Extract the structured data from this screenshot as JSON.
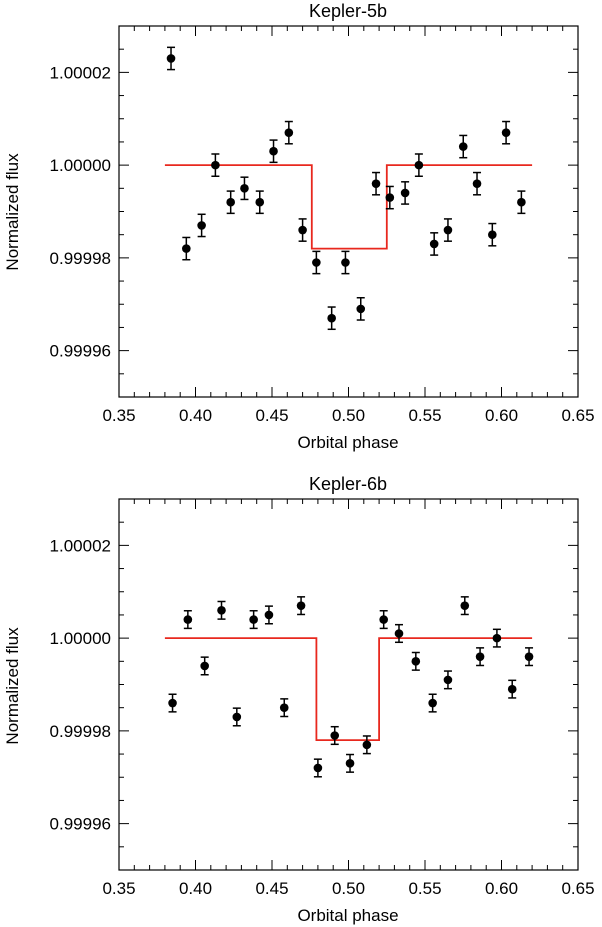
{
  "chart_data": [
    {
      "type": "scatter",
      "title": "Kepler-5b",
      "xlabel": "Orbital phase",
      "ylabel": "Normalized flux",
      "xlim": [
        0.35,
        0.65
      ],
      "ylim": [
        0.99995,
        1.00003
      ],
      "xticks": [
        0.35,
        0.4,
        0.45,
        0.5,
        0.55,
        0.6,
        0.65
      ],
      "xtick_labels": [
        "0.35",
        "0.40",
        "0.45",
        "0.50",
        "0.55",
        "0.60",
        "0.65"
      ],
      "yticks": [
        0.99996,
        0.99998,
        1.0,
        1.00002
      ],
      "ytick_labels": [
        "0.99996",
        "0.99998",
        "1.00000",
        "1.00002"
      ],
      "points": [
        {
          "x": 0.384,
          "y": 1.000023,
          "err": 2.4e-06
        },
        {
          "x": 0.394,
          "y": 0.999982,
          "err": 2.4e-06
        },
        {
          "x": 0.404,
          "y": 0.999987,
          "err": 2.4e-06
        },
        {
          "x": 0.413,
          "y": 1.0,
          "err": 2.4e-06
        },
        {
          "x": 0.423,
          "y": 0.999992,
          "err": 2.4e-06
        },
        {
          "x": 0.432,
          "y": 0.999995,
          "err": 2.4e-06
        },
        {
          "x": 0.442,
          "y": 0.999992,
          "err": 2.4e-06
        },
        {
          "x": 0.451,
          "y": 1.000003,
          "err": 2.4e-06
        },
        {
          "x": 0.461,
          "y": 1.000007,
          "err": 2.4e-06
        },
        {
          "x": 0.47,
          "y": 0.999986,
          "err": 2.4e-06
        },
        {
          "x": 0.479,
          "y": 0.999979,
          "err": 2.4e-06
        },
        {
          "x": 0.489,
          "y": 0.999967,
          "err": 2.4e-06
        },
        {
          "x": 0.498,
          "y": 0.999979,
          "err": 2.4e-06
        },
        {
          "x": 0.508,
          "y": 0.999969,
          "err": 2.4e-06
        },
        {
          "x": 0.518,
          "y": 0.999996,
          "err": 2.4e-06
        },
        {
          "x": 0.527,
          "y": 0.999993,
          "err": 2.4e-06
        },
        {
          "x": 0.537,
          "y": 0.999994,
          "err": 2.4e-06
        },
        {
          "x": 0.546,
          "y": 1.0,
          "err": 2.4e-06
        },
        {
          "x": 0.556,
          "y": 0.999983,
          "err": 2.4e-06
        },
        {
          "x": 0.565,
          "y": 0.999986,
          "err": 2.4e-06
        },
        {
          "x": 0.575,
          "y": 1.000004,
          "err": 2.4e-06
        },
        {
          "x": 0.584,
          "y": 0.999996,
          "err": 2.4e-06
        },
        {
          "x": 0.594,
          "y": 0.999985,
          "err": 2.4e-06
        },
        {
          "x": 0.603,
          "y": 1.000007,
          "err": 2.4e-06
        },
        {
          "x": 0.613,
          "y": 0.999992,
          "err": 2.4e-06
        }
      ],
      "model": {
        "color": "#e8281e",
        "x": [
          0.38,
          0.476,
          0.476,
          0.525,
          0.525,
          0.62
        ],
        "y": [
          1.0,
          1.0,
          0.999982,
          0.999982,
          1.0,
          1.0
        ]
      }
    },
    {
      "type": "scatter",
      "title": "Kepler-6b",
      "xlabel": "Orbital phase",
      "ylabel": "Normalized flux",
      "xlim": [
        0.35,
        0.65
      ],
      "ylim": [
        0.99995,
        1.00003
      ],
      "xticks": [
        0.35,
        0.4,
        0.45,
        0.5,
        0.55,
        0.6,
        0.65
      ],
      "xtick_labels": [
        "0.35",
        "0.40",
        "0.45",
        "0.50",
        "0.55",
        "0.60",
        "0.65"
      ],
      "yticks": [
        0.99996,
        0.99998,
        1.0,
        1.00002
      ],
      "ytick_labels": [
        "0.99996",
        "0.99998",
        "1.00000",
        "1.00002"
      ],
      "points": [
        {
          "x": 0.385,
          "y": 0.999986,
          "err": 1.9e-06
        },
        {
          "x": 0.395,
          "y": 1.000004,
          "err": 1.9e-06
        },
        {
          "x": 0.406,
          "y": 0.999994,
          "err": 1.9e-06
        },
        {
          "x": 0.417,
          "y": 1.000006,
          "err": 1.9e-06
        },
        {
          "x": 0.427,
          "y": 0.999983,
          "err": 1.9e-06
        },
        {
          "x": 0.438,
          "y": 1.000004,
          "err": 1.9e-06
        },
        {
          "x": 0.448,
          "y": 1.000005,
          "err": 1.9e-06
        },
        {
          "x": 0.458,
          "y": 0.999985,
          "err": 1.9e-06
        },
        {
          "x": 0.469,
          "y": 1.000007,
          "err": 1.9e-06
        },
        {
          "x": 0.48,
          "y": 0.999972,
          "err": 1.9e-06
        },
        {
          "x": 0.491,
          "y": 0.999979,
          "err": 1.9e-06
        },
        {
          "x": 0.501,
          "y": 0.999973,
          "err": 1.9e-06
        },
        {
          "x": 0.512,
          "y": 0.999977,
          "err": 1.9e-06
        },
        {
          "x": 0.523,
          "y": 1.000004,
          "err": 1.9e-06
        },
        {
          "x": 0.533,
          "y": 1.000001,
          "err": 1.9e-06
        },
        {
          "x": 0.544,
          "y": 0.999995,
          "err": 1.9e-06
        },
        {
          "x": 0.555,
          "y": 0.999986,
          "err": 1.9e-06
        },
        {
          "x": 0.565,
          "y": 0.999991,
          "err": 1.9e-06
        },
        {
          "x": 0.576,
          "y": 1.000007,
          "err": 1.9e-06
        },
        {
          "x": 0.586,
          "y": 0.999996,
          "err": 1.9e-06
        },
        {
          "x": 0.597,
          "y": 1.0,
          "err": 1.9e-06
        },
        {
          "x": 0.607,
          "y": 0.999989,
          "err": 1.9e-06
        },
        {
          "x": 0.618,
          "y": 0.999996,
          "err": 1.9e-06
        }
      ],
      "model": {
        "color": "#e8281e",
        "x": [
          0.38,
          0.479,
          0.479,
          0.52,
          0.52,
          0.62
        ],
        "y": [
          1.0,
          1.0,
          0.999978,
          0.999978,
          1.0,
          1.0
        ]
      }
    }
  ]
}
